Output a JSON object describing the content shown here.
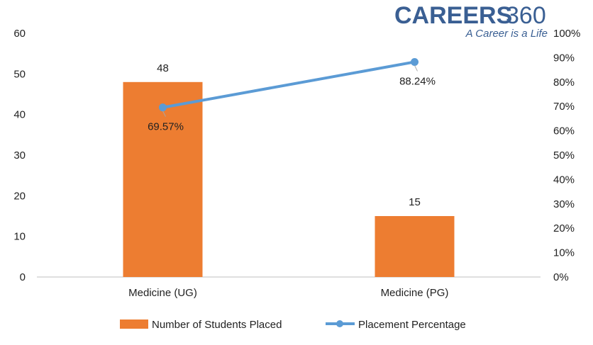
{
  "brand": {
    "logo_word": "CAREERS",
    "logo_number": "360",
    "tagline": "A Career is a Life"
  },
  "colors": {
    "bar": "#ed7d31",
    "line": "#5b9bd5",
    "axis": "#bfbfbf",
    "text": "#222222",
    "brand": "#3a5f93"
  },
  "chart_data": {
    "type": "bar",
    "categories": [
      "Medicine (UG)",
      "Medicine (PG)"
    ],
    "series": [
      {
        "name": "Number of Students Placed",
        "kind": "bar",
        "axis": "left",
        "values": [
          48,
          15
        ],
        "labels": [
          "48",
          "15"
        ]
      },
      {
        "name": "Placement Percentage",
        "kind": "line",
        "axis": "right",
        "values": [
          69.57,
          88.24
        ],
        "labels": [
          "69.57%",
          "88.24%"
        ]
      }
    ],
    "y_left": {
      "min": 0,
      "max": 60,
      "ticks": [
        "0",
        "10",
        "20",
        "30",
        "40",
        "50",
        "60"
      ]
    },
    "y_right": {
      "min": 0,
      "max": 100,
      "ticks": [
        "0%",
        "10%",
        "20%",
        "30%",
        "40%",
        "50%",
        "60%",
        "70%",
        "80%",
        "90%",
        "100%"
      ]
    },
    "title": "",
    "xlabel": "",
    "ylabel": "",
    "legend_position": "bottom",
    "grid": false
  }
}
